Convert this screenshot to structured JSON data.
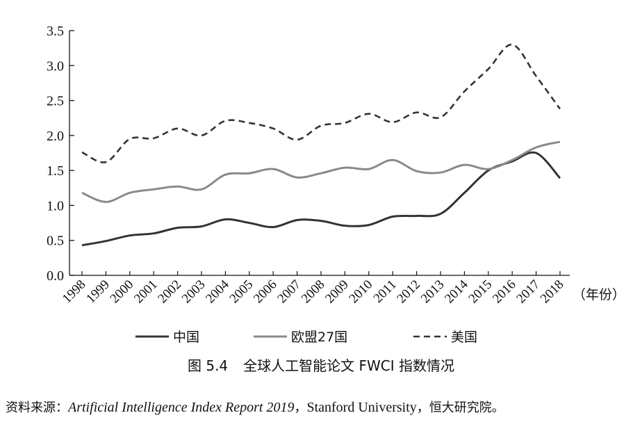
{
  "chart_data": {
    "type": "line",
    "title": "全球人工智能论文 FWCI 指数情况",
    "figure_number": "图 5.4",
    "x_unit": "（年份）",
    "categories": [
      "1998",
      "1999",
      "2000",
      "2001",
      "2002",
      "2003",
      "2004",
      "2005",
      "2006",
      "2007",
      "2008",
      "2009",
      "2010",
      "2011",
      "2012",
      "2013",
      "2014",
      "2015",
      "2016",
      "2017",
      "2018"
    ],
    "y_ticks": [
      "0.0",
      "0.5",
      "1.0",
      "1.5",
      "2.0",
      "2.5",
      "3.0",
      "3.5"
    ],
    "ylim": [
      0,
      3.5
    ],
    "grid": false,
    "legend_position": "bottom",
    "series": [
      {
        "name": "中国",
        "color": "#333333",
        "style": "solid",
        "values": [
          0.43,
          0.49,
          0.57,
          0.6,
          0.68,
          0.7,
          0.8,
          0.75,
          0.69,
          0.79,
          0.78,
          0.71,
          0.72,
          0.84,
          0.85,
          0.88,
          1.18,
          1.5,
          1.63,
          1.75,
          1.39
        ]
      },
      {
        "name": "欧盟27国",
        "color": "#8a8a8a",
        "style": "solid",
        "values": [
          1.18,
          1.05,
          1.18,
          1.23,
          1.27,
          1.23,
          1.44,
          1.46,
          1.52,
          1.4,
          1.46,
          1.54,
          1.52,
          1.65,
          1.49,
          1.47,
          1.58,
          1.52,
          1.65,
          1.83,
          1.91
        ]
      },
      {
        "name": "美国",
        "color": "#333333",
        "style": "dashed",
        "values": [
          1.76,
          1.62,
          1.95,
          1.96,
          2.1,
          2.0,
          2.21,
          2.18,
          2.1,
          1.94,
          2.14,
          2.18,
          2.31,
          2.19,
          2.33,
          2.26,
          2.63,
          2.95,
          3.3,
          2.85,
          2.38
        ]
      }
    ]
  },
  "source": {
    "prefix": "资料来源：",
    "italic": "Artificial Intelligence Index Report 2019",
    "sep1": "，",
    "english": "Stanford University",
    "sep2": "，",
    "suffix": "恒大研究院。"
  }
}
